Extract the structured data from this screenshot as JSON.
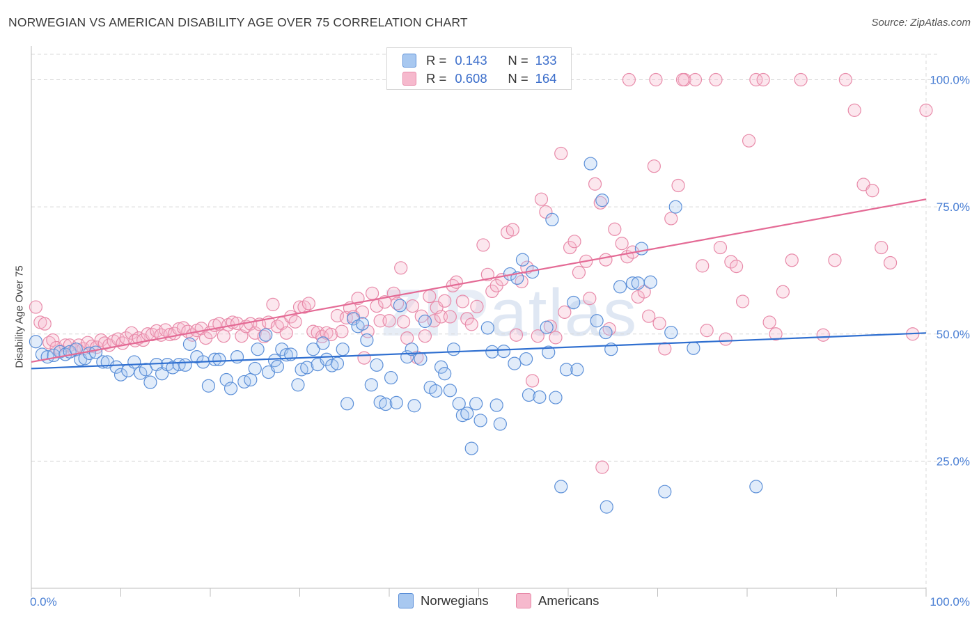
{
  "header": {
    "title": "NORWEGIAN VS AMERICAN DISABILITY AGE OVER 75 CORRELATION CHART",
    "source": "Source: ZipAtlas.com"
  },
  "watermark": {
    "bold": "ZIP",
    "light": "atlas"
  },
  "legend_top": {
    "rows": [
      {
        "r_label": "R =",
        "r_value": "0.143",
        "n_label": "N =",
        "n_value": "133"
      },
      {
        "r_label": "R =",
        "r_value": "0.608",
        "n_label": "N =",
        "n_value": "164"
      }
    ]
  },
  "legend_bottom": {
    "items": [
      {
        "label": "Norwegians"
      },
      {
        "label": "Americans"
      }
    ]
  },
  "colors": {
    "blue_fill": "#a8c8f0",
    "blue_stroke": "#5b8fd8",
    "blue_line": "#2f6fd0",
    "pink_fill": "#f6b9cd",
    "pink_stroke": "#e88aa9",
    "pink_line": "#e46a95",
    "tick_text": "#4a7fd4",
    "grid": "#d8d8d8"
  },
  "chart_data": {
    "type": "scatter",
    "title": "NORWEGIAN VS AMERICAN DISABILITY AGE OVER 75 CORRELATION CHART",
    "xlabel": "",
    "ylabel": "Disability Age Over 75",
    "xlim": [
      0,
      100
    ],
    "ylim": [
      0,
      105
    ],
    "x_tick_labels": [
      "0.0%",
      "100.0%"
    ],
    "y_ticks": [
      25,
      50,
      75,
      100
    ],
    "y_tick_labels": [
      "25.0%",
      "50.0%",
      "75.0%",
      "100.0%"
    ],
    "grid": true,
    "legend_placement": "top-center",
    "series": [
      {
        "name": "Norwegians",
        "r": 0.143,
        "n": 133,
        "trend": [
          [
            0,
            43.2
          ],
          [
            100,
            50.2
          ]
        ],
        "points": [
          [
            0.5,
            48.5
          ],
          [
            1.2,
            46
          ],
          [
            1.8,
            45.5
          ],
          [
            2.5,
            45.8
          ],
          [
            3.2,
            46.5
          ],
          [
            3.8,
            46
          ],
          [
            4.3,
            46.5
          ],
          [
            5,
            47
          ],
          [
            5.5,
            45
          ],
          [
            6,
            45.2
          ],
          [
            6.5,
            46.2
          ],
          [
            7.2,
            46.4
          ],
          [
            8,
            44.5
          ],
          [
            8.5,
            44.5
          ],
          [
            9.5,
            43.5
          ],
          [
            10,
            42
          ],
          [
            10.8,
            42.8
          ],
          [
            11.5,
            44.5
          ],
          [
            12.2,
            42.3
          ],
          [
            12.8,
            43
          ],
          [
            13.3,
            40.5
          ],
          [
            14,
            44
          ],
          [
            14.6,
            42.2
          ],
          [
            15.2,
            44
          ],
          [
            15.8,
            43.4
          ],
          [
            16.5,
            44
          ],
          [
            17.2,
            43.9
          ],
          [
            17.7,
            48
          ],
          [
            18.5,
            45.5
          ],
          [
            19.2,
            44.5
          ],
          [
            19.8,
            39.8
          ],
          [
            20.5,
            45
          ],
          [
            21,
            45
          ],
          [
            21.8,
            41
          ],
          [
            22.3,
            39.3
          ],
          [
            23,
            45.5
          ],
          [
            23.8,
            40.6
          ],
          [
            24.5,
            41
          ],
          [
            25,
            43.2
          ],
          [
            25.3,
            47
          ],
          [
            26.2,
            49.8
          ],
          [
            26.5,
            42.5
          ],
          [
            27.2,
            44.8
          ],
          [
            27.5,
            43.6
          ],
          [
            28,
            47
          ],
          [
            28.5,
            45.9
          ],
          [
            29,
            46
          ],
          [
            29.8,
            40
          ],
          [
            30.2,
            43
          ],
          [
            30.8,
            43.4
          ],
          [
            31.5,
            47
          ],
          [
            32,
            44
          ],
          [
            32.6,
            48.2
          ],
          [
            33,
            45
          ],
          [
            33.6,
            43.8
          ],
          [
            34.2,
            44.2
          ],
          [
            34.8,
            47
          ],
          [
            35.3,
            36.3
          ],
          [
            36,
            53
          ],
          [
            36.5,
            51.5
          ],
          [
            37,
            52
          ],
          [
            37.5,
            48.8
          ],
          [
            38,
            40
          ],
          [
            38.6,
            43.9
          ],
          [
            39,
            36.6
          ],
          [
            39.6,
            36.2
          ],
          [
            40.2,
            41.4
          ],
          [
            40.8,
            36.5
          ],
          [
            41.2,
            55.6
          ],
          [
            42,
            45.5
          ],
          [
            42.5,
            47
          ],
          [
            42.8,
            35.9
          ],
          [
            43.5,
            45.1
          ],
          [
            44,
            52.5
          ],
          [
            44.6,
            39.5
          ],
          [
            45.2,
            38.8
          ],
          [
            45.8,
            43.5
          ],
          [
            46.2,
            42.2
          ],
          [
            46.8,
            38.9
          ],
          [
            47.2,
            47
          ],
          [
            47.8,
            36.3
          ],
          [
            48.2,
            34
          ],
          [
            48.7,
            34.4
          ],
          [
            49.2,
            27.5
          ],
          [
            49.7,
            36.3
          ],
          [
            50.2,
            33
          ],
          [
            51,
            51.2
          ],
          [
            51.5,
            46.5
          ],
          [
            52,
            36
          ],
          [
            52.4,
            32.3
          ],
          [
            52.8,
            46.6
          ],
          [
            53.5,
            61.8
          ],
          [
            54,
            44.2
          ],
          [
            54.3,
            61
          ],
          [
            54.9,
            64.6
          ],
          [
            55.3,
            45.1
          ],
          [
            55.6,
            38
          ],
          [
            56,
            62.2
          ],
          [
            56.8,
            37.6
          ],
          [
            57.6,
            51.3
          ],
          [
            57.8,
            46.4
          ],
          [
            58.2,
            72.5
          ],
          [
            58.6,
            37.5
          ],
          [
            59.2,
            20
          ],
          [
            59.8,
            43
          ],
          [
            60.6,
            56.2
          ],
          [
            61,
            43
          ],
          [
            62.5,
            83.5
          ],
          [
            63.2,
            52.6
          ],
          [
            63.8,
            76.3
          ],
          [
            64.2,
            50.3
          ],
          [
            64.8,
            47
          ],
          [
            65.8,
            59.3
          ],
          [
            67.2,
            60
          ],
          [
            67.8,
            60
          ],
          [
            68.2,
            66.8
          ],
          [
            69.2,
            60.2
          ],
          [
            70.8,
            19
          ],
          [
            71.5,
            50.3
          ],
          [
            72,
            75
          ],
          [
            74,
            47.2
          ],
          [
            64.3,
            16
          ],
          [
            81,
            20
          ]
        ]
      },
      {
        "name": "Americans",
        "r": 0.608,
        "n": 164,
        "trend": [
          [
            0,
            44.5
          ],
          [
            100,
            76.5
          ]
        ],
        "points": [
          [
            0.5,
            55.3
          ],
          [
            1,
            52.3
          ],
          [
            1.5,
            52
          ],
          [
            2,
            48.3
          ],
          [
            2.4,
            48.8
          ],
          [
            2.8,
            47.3
          ],
          [
            3.3,
            46.6
          ],
          [
            3.8,
            47.8
          ],
          [
            4.3,
            47.8
          ],
          [
            4.8,
            46.8
          ],
          [
            5.3,
            47.8
          ],
          [
            5.8,
            47.1
          ],
          [
            6.3,
            48.3
          ],
          [
            6.8,
            47.6
          ],
          [
            7.3,
            47.4
          ],
          [
            7.8,
            48.8
          ],
          [
            8.2,
            48.2
          ],
          [
            8.7,
            47.8
          ],
          [
            9.2,
            48.6
          ],
          [
            9.7,
            49
          ],
          [
            10.2,
            48.2
          ],
          [
            10.6,
            49.2
          ],
          [
            11.2,
            50.2
          ],
          [
            11.6,
            48.7
          ],
          [
            12,
            49.2
          ],
          [
            12.5,
            48.8
          ],
          [
            13,
            50
          ],
          [
            13.5,
            49.9
          ],
          [
            14,
            50.6
          ],
          [
            14.5,
            49.8
          ],
          [
            15,
            50.8
          ],
          [
            15.5,
            49.9
          ],
          [
            16,
            50.1
          ],
          [
            16.5,
            51
          ],
          [
            17,
            51.2
          ],
          [
            17.5,
            50.5
          ],
          [
            18,
            49.8
          ],
          [
            18.5,
            50.7
          ],
          [
            19,
            51.1
          ],
          [
            19.5,
            49.2
          ],
          [
            20,
            50.3
          ],
          [
            20.5,
            51.7
          ],
          [
            21,
            52
          ],
          [
            21.5,
            49.6
          ],
          [
            22,
            51.8
          ],
          [
            22.5,
            52.3
          ],
          [
            23,
            52.1
          ],
          [
            23.5,
            49.6
          ],
          [
            24,
            51.5
          ],
          [
            24.5,
            52
          ],
          [
            25,
            50.2
          ],
          [
            25.5,
            51.9
          ],
          [
            26,
            49.5
          ],
          [
            26.5,
            52.3
          ],
          [
            27,
            55.8
          ],
          [
            27.5,
            51.5
          ],
          [
            28,
            52.1
          ],
          [
            28.5,
            50.2
          ],
          [
            29,
            53.4
          ],
          [
            29.5,
            52.4
          ],
          [
            30,
            55.3
          ],
          [
            30.5,
            55.3
          ],
          [
            31,
            56
          ],
          [
            31.5,
            50.5
          ],
          [
            32,
            50.3
          ],
          [
            32.5,
            49.5
          ],
          [
            33,
            50.2
          ],
          [
            33.5,
            49.9
          ],
          [
            34.2,
            53.6
          ],
          [
            34.7,
            50.5
          ],
          [
            35.2,
            53.2
          ],
          [
            35.6,
            55.1
          ],
          [
            36,
            53.4
          ],
          [
            36.5,
            57
          ],
          [
            37,
            54.3
          ],
          [
            37.2,
            45.3
          ],
          [
            37.6,
            50.5
          ],
          [
            38.1,
            58
          ],
          [
            38.6,
            55.5
          ],
          [
            39,
            52.6
          ],
          [
            39.5,
            56.3
          ],
          [
            40,
            52.6
          ],
          [
            40.5,
            58
          ],
          [
            40.9,
            56
          ],
          [
            41.3,
            63
          ],
          [
            41.6,
            52.4
          ],
          [
            42,
            49.2
          ],
          [
            42.6,
            55.5
          ],
          [
            43.1,
            45.4
          ],
          [
            43.6,
            53.5
          ],
          [
            44,
            49.6
          ],
          [
            44.5,
            57.4
          ],
          [
            45,
            52.6
          ],
          [
            45.3,
            55.2
          ],
          [
            45.8,
            53.4
          ],
          [
            46.2,
            56.5
          ],
          [
            46.8,
            53.4
          ],
          [
            47.1,
            59.5
          ],
          [
            47.5,
            60.2
          ],
          [
            48.2,
            56.4
          ],
          [
            48.7,
            53
          ],
          [
            49.2,
            51.9
          ],
          [
            49.8,
            55.4
          ],
          [
            50.5,
            67.5
          ],
          [
            51,
            61.7
          ],
          [
            51.5,
            58.4
          ],
          [
            52,
            59.5
          ],
          [
            52.6,
            60.7
          ],
          [
            53.2,
            70
          ],
          [
            53.8,
            70.5
          ],
          [
            54.2,
            49.8
          ],
          [
            54.8,
            60.3
          ],
          [
            55.4,
            63.1
          ],
          [
            56,
            40.8
          ],
          [
            56.6,
            49.6
          ],
          [
            57,
            76.5
          ],
          [
            57.5,
            74
          ],
          [
            58,
            51.5
          ],
          [
            58.6,
            49.3
          ],
          [
            59.2,
            85.5
          ],
          [
            59.6,
            54.3
          ],
          [
            60.2,
            67
          ],
          [
            60.7,
            68.2
          ],
          [
            61.2,
            62.1
          ],
          [
            62,
            64.3
          ],
          [
            62.4,
            57
          ],
          [
            63,
            79.5
          ],
          [
            63.6,
            75.8
          ],
          [
            64.2,
            64.6
          ],
          [
            64.6,
            51
          ],
          [
            65.2,
            70.6
          ],
          [
            66,
            67.8
          ],
          [
            66.6,
            65.2
          ],
          [
            67.2,
            66.1
          ],
          [
            67.8,
            57.3
          ],
          [
            68.5,
            58.3
          ],
          [
            69,
            53.5
          ],
          [
            69.6,
            83
          ],
          [
            70.2,
            52.1
          ],
          [
            70.8,
            47.1
          ],
          [
            71.5,
            72.7
          ],
          [
            72.3,
            79.2
          ],
          [
            73,
            100
          ],
          [
            74.2,
            100
          ],
          [
            75,
            63.4
          ],
          [
            75.5,
            50.7
          ],
          [
            76.5,
            100
          ],
          [
            77,
            67
          ],
          [
            77.6,
            49
          ],
          [
            78.2,
            64.2
          ],
          [
            78.8,
            63.3
          ],
          [
            79.5,
            56.4
          ],
          [
            80.2,
            88
          ],
          [
            81,
            100
          ],
          [
            81.8,
            100
          ],
          [
            82.5,
            52.3
          ],
          [
            83.2,
            50
          ],
          [
            84,
            58.3
          ],
          [
            85,
            64.5
          ],
          [
            86,
            100
          ],
          [
            88.5,
            49.8
          ],
          [
            89.8,
            64.5
          ],
          [
            91,
            100
          ],
          [
            92,
            94
          ],
          [
            93,
            79.4
          ],
          [
            94,
            78.2
          ],
          [
            95,
            67
          ],
          [
            96,
            64
          ],
          [
            98.5,
            50
          ],
          [
            100,
            94
          ],
          [
            63.8,
            23.8
          ],
          [
            66.8,
            100
          ],
          [
            69.8,
            100
          ],
          [
            72.8,
            100
          ]
        ]
      }
    ]
  }
}
